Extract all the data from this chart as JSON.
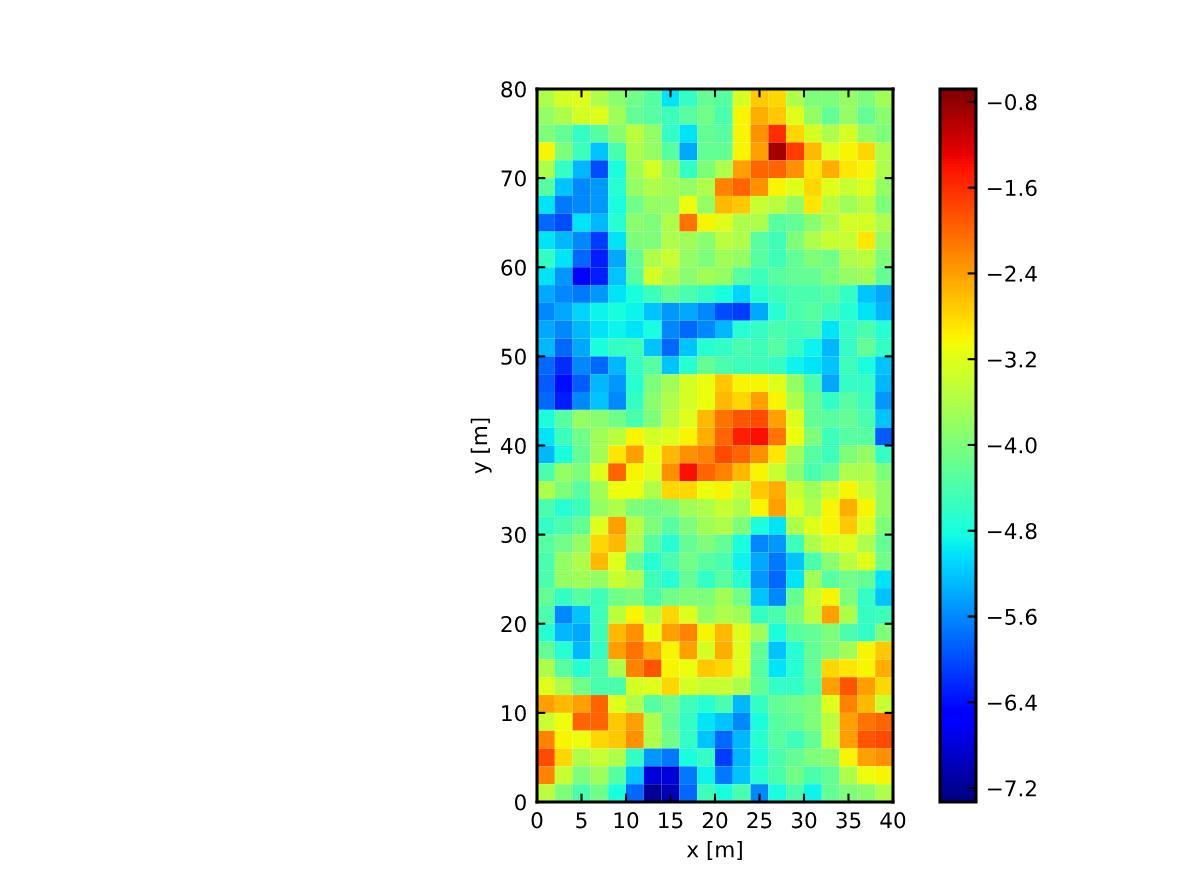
{
  "chart_data": {
    "type": "heatmap",
    "xlabel": "x [m]",
    "ylabel": "y [m]",
    "cells": [
      [
        -3.6,
        -3.3,
        -3.2,
        -3.6,
        -3.9,
        -4.1,
        -4.3,
        -5.0,
        -4.6,
        -4.2,
        -4.3,
        -3.3,
        -2.7,
        -2.8,
        -3.6,
        -4.0,
        -4.0,
        -3.8,
        -4.0,
        -3.7
      ],
      [
        -3.8,
        -3.6,
        -3.3,
        -3.2,
        -3.7,
        -4.2,
        -4.3,
        -4.5,
        -4.3,
        -4.1,
        -4.4,
        -3.0,
        -2.5,
        -2.7,
        -3.2,
        -3.8,
        -4.2,
        -3.8,
        -4.2,
        -3.9
      ],
      [
        -4.0,
        -4.2,
        -4.6,
        -4.3,
        -3.9,
        -3.5,
        -3.8,
        -4.6,
        -5.0,
        -4.2,
        -4.3,
        -3.0,
        -2.3,
        -1.6,
        -2.8,
        -3.3,
        -3.6,
        -3.3,
        -3.8,
        -4.0
      ],
      [
        -3.0,
        -4.0,
        -4.5,
        -5.2,
        -4.4,
        -3.6,
        -3.8,
        -4.3,
        -5.4,
        -4.2,
        -4.2,
        -3.0,
        -2.4,
        -0.9,
        -1.7,
        -2.6,
        -3.2,
        -3.0,
        -2.8,
        -3.6
      ],
      [
        -3.6,
        -4.6,
        -5.3,
        -6.0,
        -4.8,
        -3.7,
        -3.3,
        -3.8,
        -4.6,
        -4.0,
        -3.6,
        -2.4,
        -2.0,
        -2.0,
        -2.3,
        -2.9,
        -2.5,
        -2.9,
        -3.0,
        -3.6
      ],
      [
        -4.3,
        -5.2,
        -5.6,
        -5.5,
        -4.7,
        -3.8,
        -3.6,
        -3.7,
        -3.8,
        -3.6,
        -2.2,
        -2.0,
        -2.3,
        -3.0,
        -3.2,
        -2.8,
        -3.2,
        -3.4,
        -3.2,
        -3.8
      ],
      [
        -5.0,
        -5.7,
        -5.6,
        -5.5,
        -4.8,
        -4.1,
        -3.8,
        -3.8,
        -3.1,
        -3.8,
        -2.6,
        -2.7,
        -3.4,
        -3.5,
        -3.8,
        -2.9,
        -3.5,
        -3.7,
        -3.5,
        -4.0
      ],
      [
        -5.8,
        -6.0,
        -5.0,
        -5.3,
        -4.7,
        -3.9,
        -4.0,
        -3.6,
        -2.1,
        -3.0,
        -3.2,
        -3.6,
        -3.6,
        -4.3,
        -4.2,
        -3.9,
        -3.6,
        -3.3,
        -3.3,
        -3.6
      ],
      [
        -5.0,
        -5.3,
        -5.6,
        -6.1,
        -5.0,
        -4.0,
        -4.0,
        -3.6,
        -3.7,
        -3.9,
        -3.5,
        -3.6,
        -4.3,
        -4.5,
        -4.0,
        -3.6,
        -3.4,
        -3.4,
        -2.9,
        -3.8
      ],
      [
        -4.6,
        -5.0,
        -5.8,
        -6.3,
        -5.4,
        -4.2,
        -3.6,
        -3.4,
        -3.8,
        -4.0,
        -3.7,
        -3.8,
        -4.3,
        -4.5,
        -4.2,
        -4.0,
        -4.1,
        -3.6,
        -3.5,
        -4.0
      ],
      [
        -5.0,
        -5.5,
        -6.5,
        -6.3,
        -5.2,
        -4.3,
        -3.3,
        -3.6,
        -3.9,
        -3.7,
        -3.8,
        -4.3,
        -4.5,
        -4.3,
        -4.2,
        -4.2,
        -4.0,
        -3.8,
        -3.7,
        -4.2
      ],
      [
        -5.4,
        -5.6,
        -5.7,
        -5.5,
        -5.0,
        -4.8,
        -4.5,
        -4.2,
        -4.4,
        -4.6,
        -4.8,
        -5.1,
        -4.7,
        -4.5,
        -4.4,
        -4.4,
        -4.3,
        -4.6,
        -5.2,
        -5.4
      ],
      [
        -5.6,
        -5.4,
        -5.1,
        -4.9,
        -4.8,
        -4.9,
        -5.2,
        -5.5,
        -5.4,
        -5.6,
        -6.0,
        -6.1,
        -5.4,
        -4.7,
        -4.4,
        -4.3,
        -4.5,
        -4.7,
        -5.0,
        -5.3
      ],
      [
        -5.4,
        -5.6,
        -5.3,
        -5.0,
        -4.9,
        -5.0,
        -4.8,
        -5.6,
        -5.8,
        -5.6,
        -5.3,
        -4.7,
        -4.6,
        -4.4,
        -4.5,
        -4.4,
        -5.0,
        -4.6,
        -4.4,
        -4.7
      ],
      [
        -5.3,
        -5.8,
        -5.4,
        -4.8,
        -4.6,
        -4.5,
        -5.2,
        -5.8,
        -5.2,
        -4.7,
        -4.6,
        -4.4,
        -4.5,
        -4.3,
        -4.6,
        -4.9,
        -5.3,
        -4.6,
        -4.2,
        -4.6
      ],
      [
        -5.8,
        -6.2,
        -5.6,
        -5.8,
        -5.3,
        -4.6,
        -4.3,
        -5.2,
        -4.7,
        -4.2,
        -4.4,
        -4.5,
        -4.5,
        -4.6,
        -4.9,
        -5.0,
        -5.2,
        -4.5,
        -4.8,
        -5.2
      ],
      [
        -5.9,
        -6.4,
        -5.9,
        -5.3,
        -5.5,
        -4.7,
        -4.0,
        -3.7,
        -3.3,
        -3.1,
        -2.7,
        -3.0,
        -3.0,
        -3.2,
        -3.8,
        -4.4,
        -5.4,
        -4.6,
        -4.6,
        -5.3
      ],
      [
        -5.8,
        -6.3,
        -5.6,
        -5.2,
        -5.6,
        -4.6,
        -3.9,
        -3.6,
        -3.3,
        -3.1,
        -2.6,
        -2.8,
        -2.4,
        -3.0,
        -3.6,
        -4.2,
        -4.6,
        -4.3,
        -4.5,
        -5.5
      ],
      [
        -4.8,
        -4.3,
        -3.8,
        -3.9,
        -4.1,
        -4.4,
        -4.0,
        -3.5,
        -3.2,
        -2.6,
        -2.1,
        -1.9,
        -1.8,
        -2.4,
        -3.2,
        -4.2,
        -4.3,
        -4.2,
        -4.4,
        -5.2
      ],
      [
        -5.0,
        -4.5,
        -4.1,
        -3.7,
        -3.5,
        -3.0,
        -3.3,
        -3.2,
        -3.0,
        -2.5,
        -2.0,
        -1.5,
        -1.4,
        -2.1,
        -3.1,
        -4.0,
        -4.5,
        -4.3,
        -4.3,
        -5.9
      ],
      [
        -5.3,
        -4.8,
        -4.2,
        -3.7,
        -2.9,
        -2.4,
        -3.1,
        -2.6,
        -2.3,
        -2.2,
        -1.8,
        -2.0,
        -2.3,
        -2.9,
        -3.7,
        -4.3,
        -4.5,
        -4.0,
        -3.8,
        -4.6
      ],
      [
        -4.4,
        -3.8,
        -4.0,
        -3.2,
        -2.0,
        -3.0,
        -3.2,
        -2.3,
        -1.4,
        -2.0,
        -2.2,
        -2.6,
        -3.0,
        -3.4,
        -3.9,
        -4.4,
        -4.2,
        -3.6,
        -3.6,
        -4.0
      ],
      [
        -3.6,
        -4.0,
        -4.3,
        -3.7,
        -3.1,
        -3.1,
        -3.6,
        -2.8,
        -2.8,
        -3.1,
        -3.0,
        -3.4,
        -2.7,
        -2.5,
        -3.4,
        -3.7,
        -3.4,
        -3.0,
        -3.4,
        -3.8
      ],
      [
        -4.4,
        -4.7,
        -4.5,
        -3.8,
        -3.6,
        -4.0,
        -4.1,
        -4.0,
        -3.7,
        -3.6,
        -3.4,
        -3.6,
        -3.0,
        -2.4,
        -3.2,
        -3.6,
        -3.0,
        -2.5,
        -3.0,
        -3.8
      ],
      [
        -4.6,
        -4.4,
        -4.2,
        -3.2,
        -2.4,
        -3.5,
        -4.0,
        -4.3,
        -4.0,
        -3.7,
        -3.6,
        -4.0,
        -4.8,
        -5.0,
        -3.6,
        -3.2,
        -3.0,
        -2.7,
        -3.2,
        -4.0
      ],
      [
        -4.3,
        -4.1,
        -3.8,
        -2.8,
        -2.6,
        -3.6,
        -4.3,
        -4.7,
        -4.2,
        -4.0,
        -4.2,
        -4.8,
        -5.6,
        -5.5,
        -4.5,
        -3.6,
        -3.3,
        -3.2,
        -3.6,
        -4.2
      ],
      [
        -4.4,
        -3.8,
        -3.6,
        -2.6,
        -3.2,
        -4.2,
        -4.7,
        -4.4,
        -4.1,
        -4.3,
        -4.4,
        -4.9,
        -5.4,
        -5.7,
        -5.2,
        -4.4,
        -3.9,
        -3.5,
        -3.2,
        -4.1
      ],
      [
        -4.4,
        -3.8,
        -3.7,
        -3.8,
        -3.4,
        -3.6,
        -4.5,
        -4.7,
        -4.2,
        -4.6,
        -4.3,
        -4.7,
        -5.5,
        -5.8,
        -5.0,
        -3.7,
        -4.3,
        -4.1,
        -4.2,
        -5.0
      ],
      [
        -4.2,
        -4.6,
        -4.3,
        -4.5,
        -4.1,
        -4.0,
        -4.4,
        -4.1,
        -4.0,
        -4.0,
        -3.7,
        -4.1,
        -5.2,
        -5.6,
        -4.2,
        -3.4,
        -3.0,
        -4.0,
        -4.6,
        -5.2
      ],
      [
        -4.4,
        -5.6,
        -5.2,
        -4.5,
        -3.5,
        -3.0,
        -3.5,
        -2.8,
        -3.2,
        -3.8,
        -3.6,
        -3.7,
        -4.6,
        -4.4,
        -4.0,
        -3.5,
        -2.4,
        -3.6,
        -4.6,
        -4.5
      ],
      [
        -4.7,
        -5.3,
        -5.4,
        -4.5,
        -2.6,
        -2.3,
        -3.1,
        -2.4,
        -2.2,
        -3.0,
        -2.6,
        -3.2,
        -3.7,
        -4.8,
        -4.3,
        -4.2,
        -4.0,
        -4.4,
        -4.6,
        -4.0
      ],
      [
        -4.2,
        -4.7,
        -5.3,
        -4.6,
        -2.4,
        -2.1,
        -2.5,
        -3.0,
        -2.4,
        -3.3,
        -2.5,
        -3.2,
        -4.2,
        -5.2,
        -4.7,
        -4.2,
        -4.0,
        -3.7,
        -3.0,
        -2.7
      ],
      [
        -3.6,
        -4.3,
        -4.7,
        -4.4,
        -3.6,
        -2.2,
        -1.9,
        -3.0,
        -3.1,
        -2.7,
        -2.8,
        -3.2,
        -4.3,
        -5.0,
        -4.7,
        -4.2,
        -2.8,
        -2.9,
        -3.0,
        -2.5
      ],
      [
        -3.2,
        -3.6,
        -4.1,
        -4.4,
        -4.4,
        -3.3,
        -3.2,
        -2.8,
        -3.3,
        -3.4,
        -3.4,
        -3.6,
        -4.2,
        -4.6,
        -4.6,
        -4.3,
        -2.4,
        -1.9,
        -2.4,
        -2.8
      ],
      [
        -2.4,
        -2.6,
        -2.4,
        -2.0,
        -3.2,
        -3.6,
        -4.3,
        -4.1,
        -4.5,
        -4.7,
        -4.4,
        -5.3,
        -4.6,
        -4.2,
        -4.1,
        -4.0,
        -3.2,
        -2.2,
        -2.6,
        -3.4
      ],
      [
        -3.4,
        -3.1,
        -2.0,
        -2.0,
        -2.7,
        -2.4,
        -3.6,
        -4.2,
        -4.6,
        -5.0,
        -5.2,
        -5.6,
        -4.8,
        -4.3,
        -4.2,
        -4.0,
        -3.5,
        -2.4,
        -2.1,
        -2.0
      ],
      [
        -2.2,
        -3.0,
        -3.1,
        -2.8,
        -2.7,
        -2.3,
        -3.6,
        -4.1,
        -4.6,
        -5.2,
        -5.8,
        -5.3,
        -4.7,
        -4.3,
        -4.5,
        -4.2,
        -3.4,
        -2.4,
        -1.9,
        -1.8
      ],
      [
        -1.8,
        -2.8,
        -3.6,
        -3.4,
        -3.6,
        -4.6,
        -5.5,
        -5.7,
        -4.8,
        -4.6,
        -6.1,
        -5.3,
        -4.8,
        -4.4,
        -4.2,
        -4.0,
        -3.9,
        -3.0,
        -2.4,
        -2.3
      ],
      [
        -2.2,
        -3.4,
        -4.0,
        -3.7,
        -4.3,
        -5.2,
        -6.8,
        -6.8,
        -5.7,
        -4.9,
        -5.7,
        -5.2,
        -4.7,
        -4.4,
        -4.1,
        -4.4,
        -4.2,
        -3.6,
        -3.1,
        -3.0
      ],
      [
        -3.5,
        -4.0,
        -4.4,
        -4.1,
        -4.8,
        -5.8,
        -7.2,
        -7.0,
        -5.8,
        -4.5,
        -4.8,
        -4.4,
        -5.6,
        -4.8,
        -4.4,
        -4.9,
        -4.2,
        -4.0,
        -3.9,
        -3.6
      ]
    ],
    "xlim": [
      0,
      40
    ],
    "ylim": [
      0,
      80
    ],
    "xticks": [
      0,
      5,
      10,
      15,
      20,
      25,
      30,
      35,
      40
    ],
    "yticks": [
      0,
      10,
      20,
      30,
      40,
      50,
      60,
      70,
      80
    ],
    "clim": [
      -7.33,
      -0.68
    ],
    "cticks": [
      {
        "value": -7.2,
        "label": "−7.2"
      },
      {
        "value": -6.4,
        "label": "−6.4"
      },
      {
        "value": -5.6,
        "label": "−5.6"
      },
      {
        "value": -4.8,
        "label": "−4.8"
      },
      {
        "value": -4.0,
        "label": "−4.0"
      },
      {
        "value": -3.2,
        "label": "−3.2"
      },
      {
        "value": -2.4,
        "label": "−2.4"
      },
      {
        "value": -1.6,
        "label": "−1.6"
      },
      {
        "value": -0.8,
        "label": "−0.8"
      }
    ]
  }
}
